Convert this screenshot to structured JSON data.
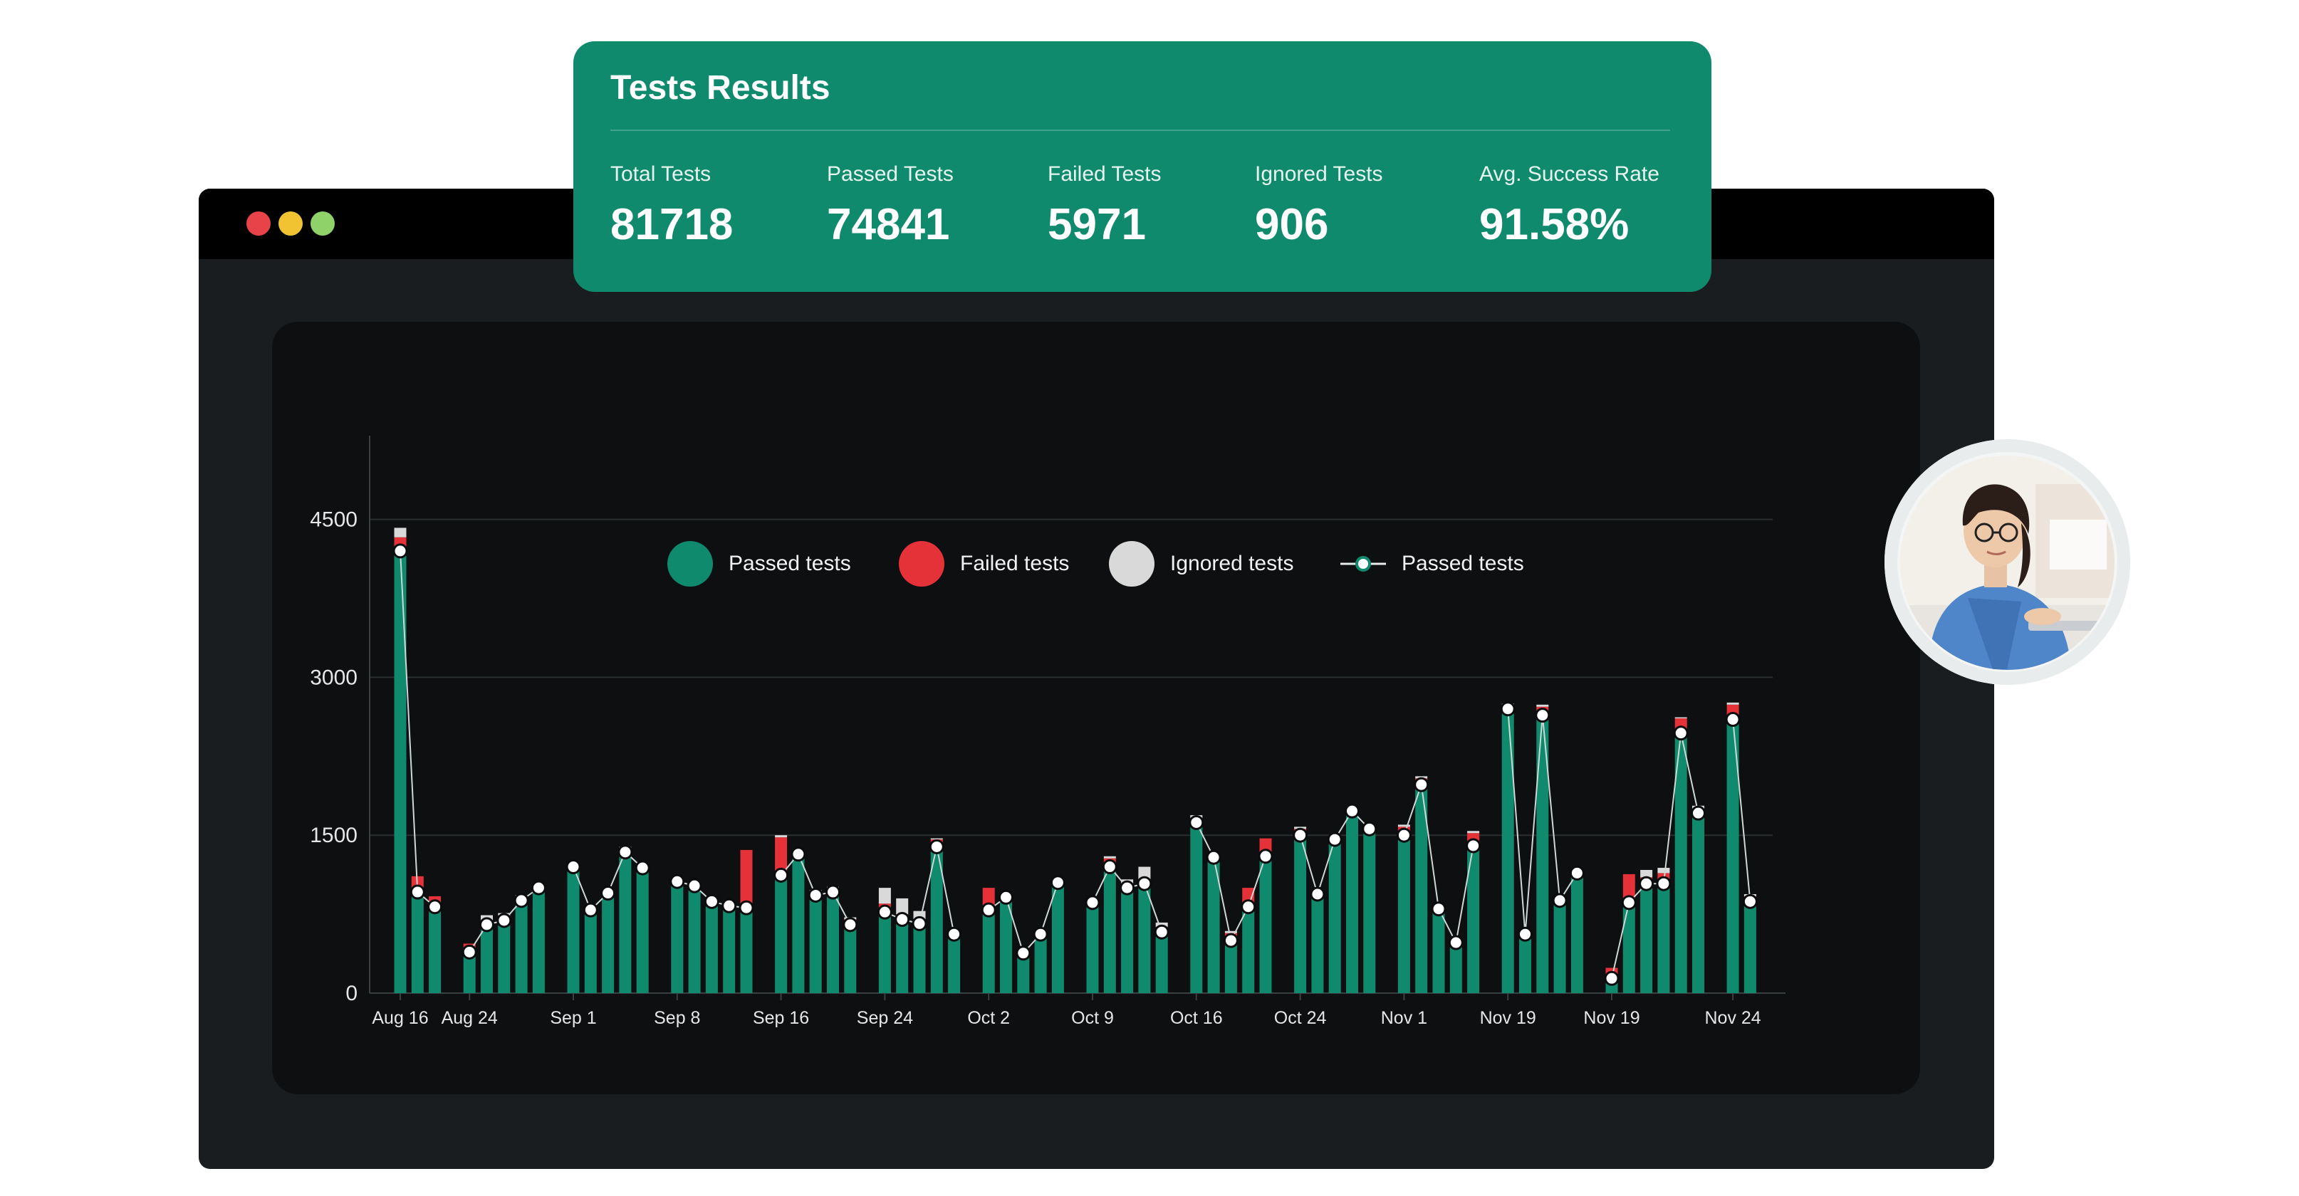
{
  "card": {
    "title": "Tests Results",
    "stats": [
      {
        "label": "Total Tests",
        "value": "81718"
      },
      {
        "label": "Passed Tests",
        "value": "74841"
      },
      {
        "label": "Failed Tests",
        "value": "5971"
      },
      {
        "label": "Ignored Tests",
        "value": "906"
      },
      {
        "label": "Avg. Success Rate",
        "value": "91.58%"
      }
    ]
  },
  "legend": {
    "passed": "Passed tests",
    "failed": "Failed tests",
    "ignored": "Ignored tests",
    "line": "Passed tests"
  },
  "colors": {
    "passed": "#0f8a6c",
    "failed": "#e53238",
    "ignored": "#d9d9d9",
    "line": "#cfd8d5",
    "card": "#0f8a6c"
  },
  "chart_data": {
    "type": "bar",
    "stacked": true,
    "y_ticks": [
      "0",
      "1500",
      "3000",
      "4500"
    ],
    "ylim": [
      0,
      4700
    ],
    "x_tick_labels": [
      "Aug 16",
      "Aug 24",
      "Sep 1",
      "Sep 8",
      "Sep 16",
      "Sep 24",
      "Oct 2",
      "Oct 9",
      "Oct 16",
      "Oct 24",
      "Nov 1",
      "Nov 19",
      "Nov 19",
      "Nov 24"
    ],
    "x_tick_positions": [
      0,
      4,
      10,
      16,
      22,
      28,
      34,
      40,
      46,
      52,
      58,
      64,
      70,
      77
    ],
    "grid": true,
    "series": [
      {
        "name": "Passed tests",
        "kind": "bar",
        "values": [
          4200,
          1000,
          850,
          0,
          400,
          650,
          700,
          880,
          1000,
          0,
          1200,
          800,
          950,
          1350,
          1200,
          0,
          1050,
          1000,
          870,
          830,
          810,
          0,
          1100,
          1300,
          930,
          950,
          650,
          0,
          780,
          710,
          660,
          1400,
          560,
          0,
          800,
          900,
          380,
          560,
          1050,
          0,
          870,
          1200,
          1000,
          1040,
          580,
          0,
          1620,
          1300,
          500,
          820,
          1300,
          0,
          1500,
          940,
          1470,
          1730,
          1550,
          0,
          1500,
          1980,
          800,
          480,
          1400,
          0,
          2700,
          560,
          2640,
          880,
          1130,
          0,
          140,
          860,
          1050,
          1030,
          2500,
          1710,
          0,
          2620,
          880
        ]
      },
      {
        "name": "Failed tests",
        "kind": "bar",
        "values": [
          130,
          110,
          70,
          0,
          70,
          30,
          40,
          40,
          20,
          0,
          0,
          0,
          20,
          30,
          20,
          0,
          20,
          20,
          20,
          20,
          550,
          0,
          380,
          20,
          30,
          50,
          50,
          0,
          70,
          40,
          40,
          60,
          20,
          0,
          200,
          30,
          20,
          20,
          20,
          0,
          20,
          80,
          40,
          40,
          50,
          0,
          40,
          20,
          70,
          180,
          170,
          0,
          60,
          20,
          20,
          20,
          20,
          0,
          80,
          60,
          20,
          30,
          120,
          0,
          20,
          20,
          80,
          20,
          20,
          0,
          100,
          270,
          50,
          110,
          110,
          40,
          0,
          120,
          40
        ]
      },
      {
        "name": "Ignored tests",
        "kind": "bar",
        "values": [
          90,
          0,
          0,
          0,
          0,
          60,
          20,
          10,
          0,
          0,
          0,
          0,
          10,
          10,
          0,
          0,
          0,
          0,
          0,
          0,
          0,
          0,
          20,
          0,
          20,
          10,
          20,
          0,
          150,
          150,
          80,
          10,
          0,
          0,
          0,
          10,
          0,
          0,
          0,
          0,
          0,
          20,
          40,
          120,
          40,
          0,
          30,
          0,
          20,
          0,
          0,
          0,
          20,
          0,
          0,
          0,
          0,
          0,
          20,
          20,
          0,
          0,
          20,
          0,
          30,
          0,
          20,
          0,
          0,
          0,
          0,
          0,
          70,
          50,
          10,
          30,
          0,
          20,
          20
        ]
      },
      {
        "name": "Passed tests",
        "kind": "line",
        "values": [
          4200,
          960,
          820,
          null,
          390,
          650,
          690,
          880,
          1000,
          null,
          1200,
          790,
          950,
          1340,
          1190,
          null,
          1060,
          1020,
          870,
          830,
          810,
          null,
          1120,
          1320,
          930,
          960,
          650,
          null,
          770,
          700,
          660,
          1390,
          560,
          null,
          790,
          910,
          380,
          560,
          1050,
          null,
          860,
          1200,
          1000,
          1040,
          580,
          null,
          1620,
          1290,
          500,
          820,
          1300,
          null,
          1500,
          940,
          1460,
          1730,
          1560,
          null,
          1500,
          1980,
          800,
          480,
          1400,
          null,
          2700,
          560,
          2640,
          880,
          1140,
          null,
          140,
          860,
          1040,
          1040,
          2470,
          1710,
          null,
          2600,
          870
        ]
      }
    ]
  }
}
